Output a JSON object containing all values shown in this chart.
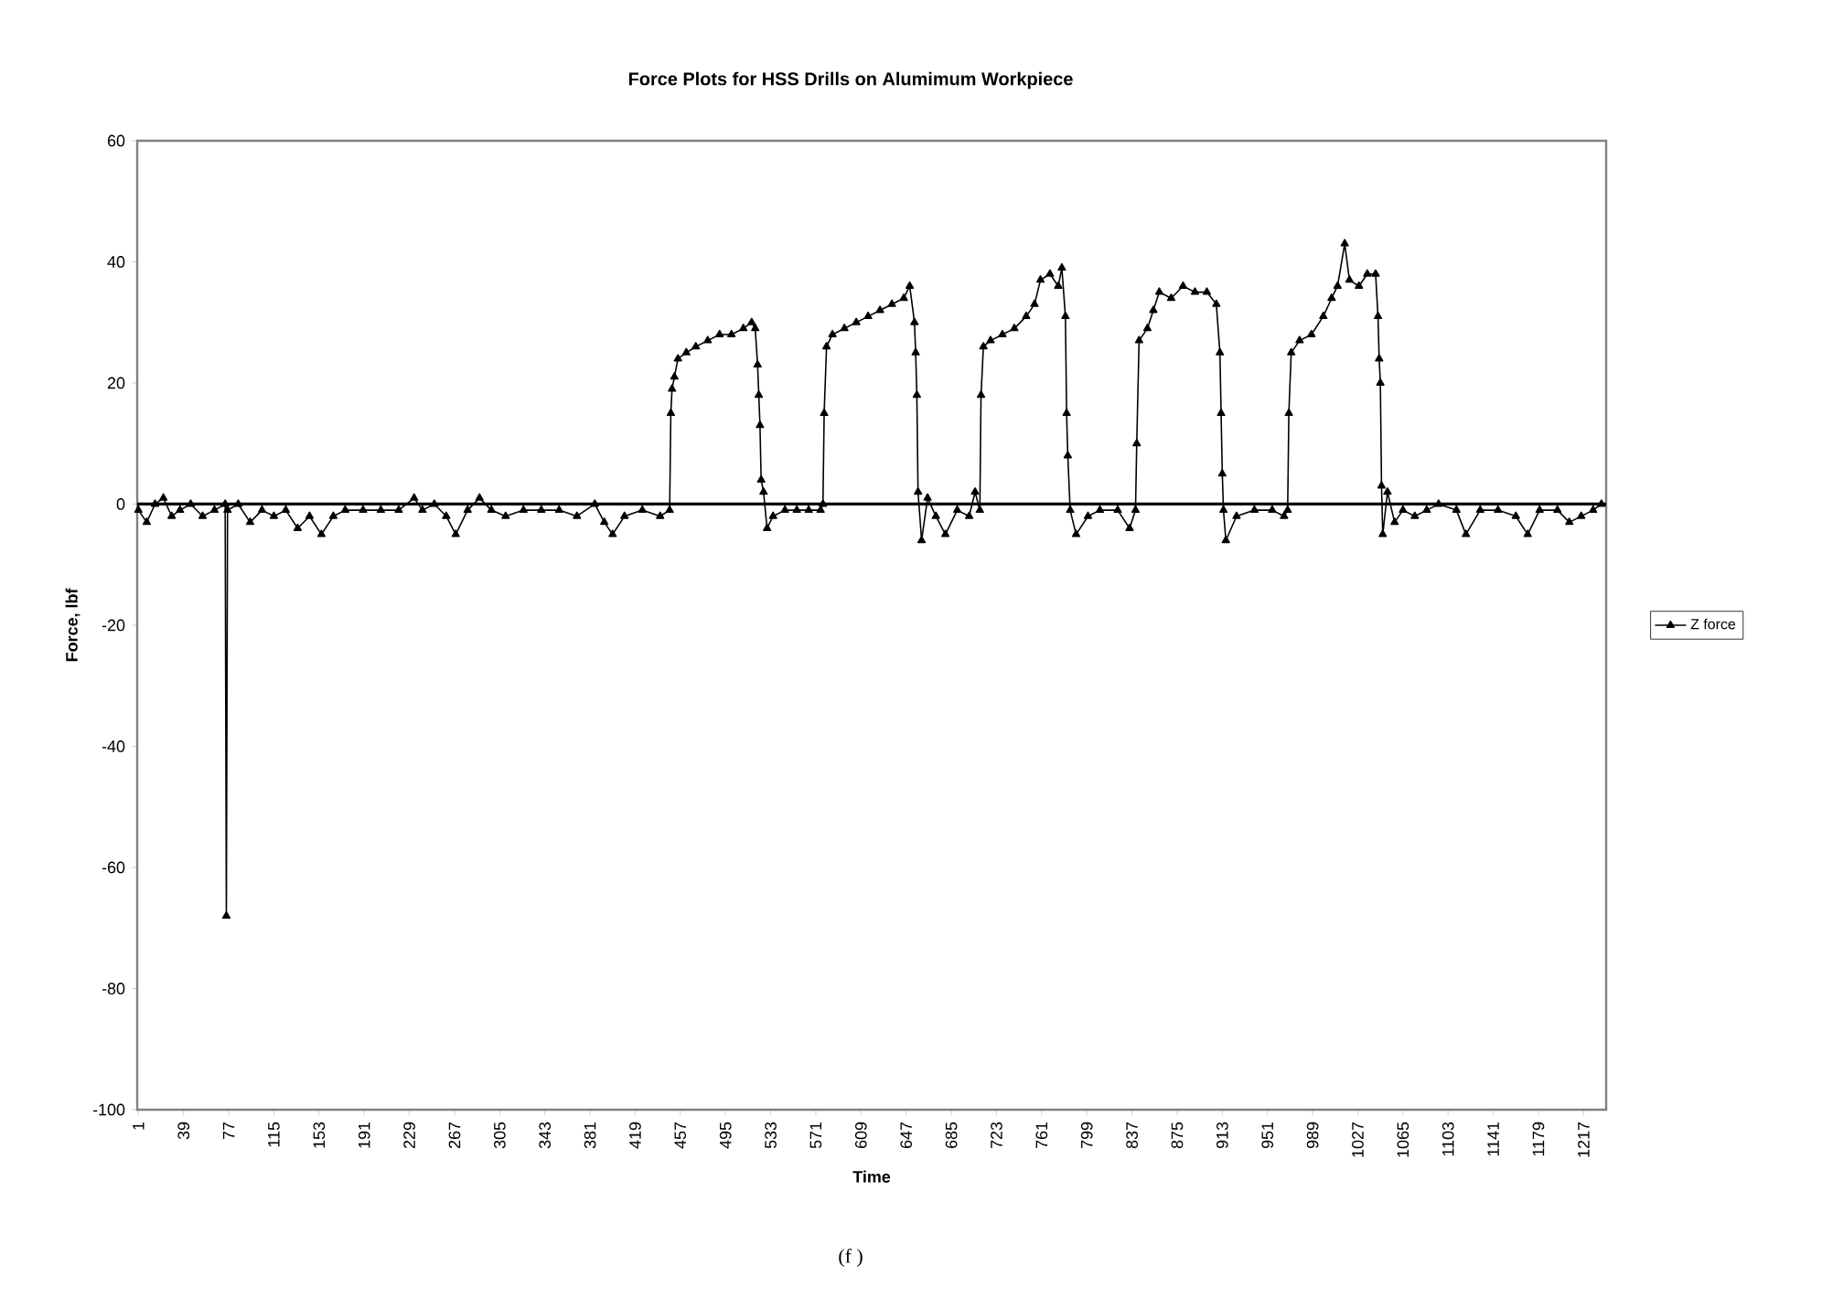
{
  "chart_data": {
    "type": "line",
    "title": "Force Plots for HSS Drills on Alumimum Workpiece",
    "xlabel": "Time",
    "ylabel": "Force, lbf",
    "annotations": [
      "(f )"
    ],
    "xlim": [
      0,
      1236
    ],
    "xticks": [
      1,
      39,
      77,
      115,
      153,
      191,
      229,
      267,
      305,
      343,
      381,
      419,
      457,
      495,
      533,
      571,
      609,
      647,
      685,
      723,
      761,
      799,
      837,
      875,
      913,
      951,
      989,
      1027,
      1065,
      1103,
      1141,
      1179,
      1217
    ],
    "ylim": [
      -100,
      60
    ],
    "yticks": [
      -100,
      -80,
      -60,
      -40,
      -20,
      0,
      20,
      40,
      60
    ],
    "legend": "right",
    "marker": "triangle",
    "line_style": "solid",
    "ref_lines": [
      {
        "axis": "y",
        "value": 0,
        "color": "#000000"
      }
    ],
    "series": [
      {
        "name": "Z force",
        "color": "#000000",
        "x": [
          1,
          8,
          15,
          22,
          29,
          36,
          45,
          55,
          65,
          74,
          75,
          76,
          85,
          95,
          105,
          115,
          125,
          135,
          145,
          155,
          165,
          175,
          190,
          205,
          220,
          233,
          240,
          250,
          260,
          268,
          278,
          288,
          298,
          310,
          325,
          340,
          355,
          370,
          385,
          393,
          400,
          410,
          425,
          440,
          448,
          449,
          450,
          452,
          455,
          462,
          470,
          480,
          490,
          500,
          510,
          517,
          520,
          522,
          523,
          524,
          525,
          527,
          530,
          535,
          545,
          555,
          565,
          575,
          577,
          578,
          580,
          585,
          595,
          605,
          615,
          625,
          635,
          645,
          650,
          654,
          655,
          656,
          657,
          660,
          665,
          672,
          680,
          690,
          700,
          705,
          709,
          710,
          712,
          718,
          728,
          738,
          748,
          755,
          760,
          768,
          775,
          778,
          781,
          782,
          783,
          785,
          790,
          800,
          810,
          825,
          835,
          840,
          841,
          843,
          850,
          855,
          860,
          870,
          880,
          890,
          900,
          908,
          911,
          912,
          913,
          914,
          916,
          925,
          940,
          955,
          965,
          968,
          969,
          971,
          978,
          988,
          998,
          1005,
          1010,
          1016,
          1020,
          1028,
          1035,
          1042,
          1044,
          1045,
          1046,
          1047,
          1048,
          1052,
          1058,
          1065,
          1075,
          1085,
          1095,
          1110,
          1118,
          1130,
          1145,
          1160,
          1170,
          1180,
          1195,
          1205,
          1215,
          1225,
          1232
        ],
        "values": [
          -1,
          -3,
          0,
          1,
          -2,
          -1,
          0,
          -2,
          -1,
          0,
          -68,
          -1,
          0,
          -3,
          -1,
          -2,
          -1,
          -4,
          -2,
          -5,
          -2,
          -1,
          -1,
          -1,
          -1,
          1,
          -1,
          0,
          -2,
          -5,
          -1,
          1,
          -1,
          -2,
          -1,
          -1,
          -1,
          -2,
          0,
          -3,
          -5,
          -2,
          -1,
          -2,
          -1,
          15,
          19,
          21,
          24,
          25,
          26,
          27,
          28,
          28,
          29,
          30,
          29,
          23,
          18,
          13,
          4,
          2,
          -4,
          -2,
          -1,
          -1,
          -1,
          -1,
          0,
          15,
          26,
          28,
          29,
          30,
          31,
          32,
          33,
          34,
          36,
          30,
          25,
          18,
          2,
          -6,
          1,
          -2,
          -5,
          -1,
          -2,
          2,
          -1,
          18,
          26,
          27,
          28,
          29,
          31,
          33,
          37,
          38,
          36,
          39,
          31,
          15,
          8,
          -1,
          -5,
          -2,
          -1,
          -1,
          -4,
          -1,
          10,
          27,
          29,
          32,
          35,
          34,
          36,
          35,
          35,
          33,
          25,
          15,
          5,
          -1,
          -6,
          -2,
          -1,
          -1,
          -2,
          -1,
          15,
          25,
          27,
          28,
          31,
          34,
          36,
          43,
          37,
          36,
          38,
          38,
          31,
          24,
          20,
          3,
          -5,
          2,
          -3,
          -1,
          -2,
          -1,
          0,
          -1,
          -5,
          -1,
          -1,
          -2,
          -5,
          -1,
          -1,
          -3,
          -2,
          -1,
          0
        ]
      }
    ]
  }
}
